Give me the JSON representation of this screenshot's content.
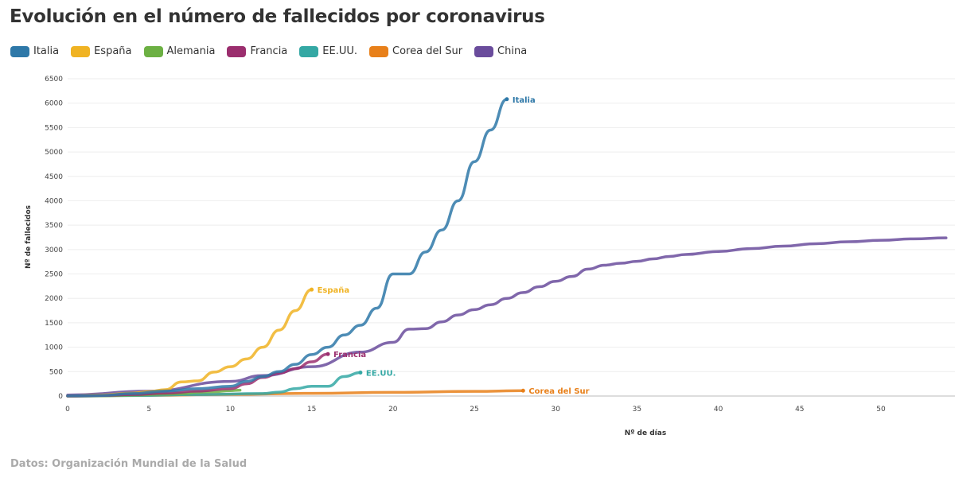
{
  "chart_data": {
    "type": "line",
    "title": "Evolución en el número de fallecidos por coronavirus",
    "xlabel": "Nº de días",
    "ylabel": "Nº de fallecidos",
    "xlim": [
      0,
      53.5
    ],
    "ylim": [
      0,
      6500
    ],
    "xticks": [
      0,
      5,
      10,
      15,
      20,
      25,
      30,
      35,
      40,
      45,
      50
    ],
    "yticks": [
      0,
      500,
      1000,
      1500,
      2000,
      2500,
      3000,
      3500,
      4000,
      4500,
      5000,
      5500,
      6000,
      6500
    ],
    "grid": true,
    "legend_position": "top-left",
    "series": [
      {
        "name": "Italia",
        "color": "#2e78a8",
        "label": "Italia",
        "x": [
          0,
          2,
          4,
          6,
          8,
          10,
          11,
          12,
          13,
          14,
          15,
          16,
          17,
          18,
          19,
          20,
          21,
          22,
          23,
          24,
          25,
          26,
          27
        ],
        "y": [
          2,
          10,
          50,
          100,
          150,
          200,
          300,
          400,
          500,
          650,
          850,
          1000,
          1250,
          1450,
          1800,
          2500,
          2500,
          2950,
          3400,
          4000,
          4800,
          5450,
          6080
        ]
      },
      {
        "name": "España",
        "color": "#f0b323",
        "label": "España",
        "x": [
          0,
          2,
          4,
          5,
          6,
          7,
          8,
          9,
          10,
          11,
          12,
          13,
          14,
          15
        ],
        "y": [
          0,
          20,
          60,
          90,
          130,
          290,
          310,
          490,
          600,
          760,
          1000,
          1350,
          1750,
          2180
        ]
      },
      {
        "name": "Alemania",
        "color": "#6cb043",
        "label": "",
        "x": [
          0,
          2,
          4,
          6,
          7,
          8,
          9,
          10,
          10.6
        ],
        "y": [
          0,
          5,
          20,
          40,
          50,
          80,
          90,
          110,
          120
        ]
      },
      {
        "name": "Francia",
        "color": "#9b2e6e",
        "label": "Francia",
        "x": [
          0,
          2,
          4,
          6,
          8,
          10,
          11,
          12,
          13,
          14,
          15,
          16
        ],
        "y": [
          0,
          10,
          30,
          60,
          100,
          150,
          250,
          380,
          470,
          560,
          700,
          860
        ]
      },
      {
        "name": "EE.UU.",
        "color": "#34a8a4",
        "label": "EE.UU.",
        "x": [
          0,
          4,
          8,
          12,
          13,
          14,
          15,
          16,
          17,
          18
        ],
        "y": [
          0,
          10,
          30,
          50,
          80,
          150,
          200,
          200,
          400,
          480
        ]
      },
      {
        "name": "Corea del Sur",
        "color": "#e8801a",
        "label": "Corea del Sur",
        "x": [
          0,
          5,
          10,
          15,
          20,
          25,
          28
        ],
        "y": [
          0,
          15,
          35,
          55,
          75,
          95,
          110
        ]
      },
      {
        "name": "China",
        "color": "#6a4c9c",
        "label": "",
        "x": [
          0,
          5,
          10,
          12,
          15,
          18,
          20,
          21,
          22,
          23,
          24,
          25,
          26,
          27,
          28,
          29,
          30,
          31,
          32,
          33,
          34,
          35,
          36,
          37,
          38,
          40,
          42,
          44,
          46,
          48,
          50,
          52,
          54
        ],
        "y": [
          20,
          100,
          300,
          420,
          600,
          900,
          1100,
          1370,
          1380,
          1520,
          1660,
          1770,
          1870,
          2000,
          2120,
          2240,
          2350,
          2450,
          2600,
          2680,
          2720,
          2760,
          2810,
          2860,
          2900,
          2960,
          3020,
          3070,
          3120,
          3160,
          3190,
          3220,
          3240
        ]
      }
    ]
  },
  "source": "Datos: Organización Mundial de la Salud"
}
